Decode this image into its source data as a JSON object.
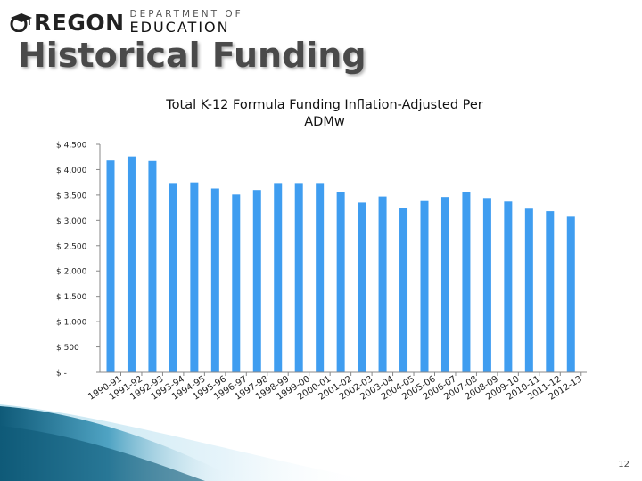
{
  "logo": {
    "word": "REGON",
    "department_line1": "DEPARTMENT OF",
    "department_line2": "EDUCATION",
    "cap_icon": "graduation-cap-icon"
  },
  "slide_title": "Historical Funding",
  "page_number": "12",
  "colors": {
    "bar": "#3f9df0",
    "axis": "#888888",
    "ribbon": "#1b6e8f"
  },
  "chart_data": {
    "type": "bar",
    "title": "Total K-12 Formula Funding Inflation-Adjusted Per ADMw",
    "title_lines": [
      "Total K-12 Formula Funding Inflation-Adjusted Per",
      "ADMw"
    ],
    "categories": [
      "1990-91",
      "1991-92",
      "1992-93",
      "1993-94",
      "1994-95",
      "1995-96",
      "1996-97",
      "1997-98",
      "1998-99",
      "1999-00",
      "2000-01",
      "2001-02",
      "2002-03",
      "2003-04",
      "2004-05",
      "2005-06",
      "2006-07",
      "2007-08",
      "2008-09",
      "2009-10",
      "2010-11",
      "2011-12",
      "2012-13"
    ],
    "values": [
      4180,
      4260,
      4170,
      3720,
      3750,
      3630,
      3510,
      3600,
      3720,
      3720,
      3720,
      3560,
      3350,
      3470,
      3240,
      3380,
      3460,
      3560,
      3440,
      3370,
      3230,
      3180,
      3070
    ],
    "ylim": [
      0,
      4500
    ],
    "yticks": [
      0,
      500,
      1000,
      1500,
      2000,
      2500,
      3000,
      3500,
      4000,
      4500
    ],
    "ytick_labels": [
      "$ -",
      "$ 500",
      "$ 1,000",
      "$ 1,500",
      "$ 2,000",
      "$ 2,500",
      "$ 3,000",
      "$ 3,500",
      "$ 4,000",
      "$ 4,500"
    ],
    "xlabel": "",
    "ylabel": "",
    "grid": false,
    "legend": "none"
  }
}
